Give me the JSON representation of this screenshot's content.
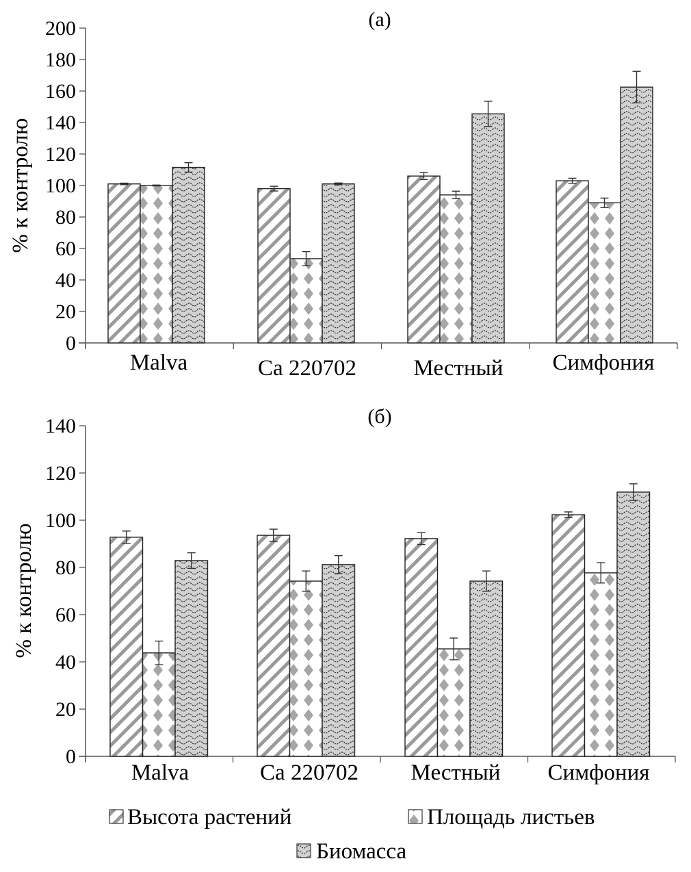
{
  "chart_data": [
    {
      "type": "bar",
      "title": "(а)",
      "xlabel": "",
      "ylabel": "% к контролю",
      "ylim": [
        0,
        200
      ],
      "yticks": [
        0,
        20,
        40,
        60,
        80,
        100,
        120,
        140,
        160,
        180,
        200
      ],
      "grid": false,
      "categories": [
        "Malva",
        "Ca 220702",
        "Местный",
        "Симфония"
      ],
      "series": [
        {
          "name": "Высота растений",
          "values": [
            101,
            98,
            106,
            103
          ],
          "errors": [
            0.5,
            1.5,
            2.2,
            1.6
          ]
        },
        {
          "name": "Площадь листьев",
          "values": [
            100,
            53.5,
            94,
            89
          ],
          "errors": [
            0.3,
            4.5,
            2.4,
            3.0
          ]
        },
        {
          "name": "Биомасса",
          "values": [
            111.5,
            101,
            145.5,
            162.5
          ],
          "errors": [
            3,
            0.6,
            8,
            10
          ]
        }
      ]
    },
    {
      "type": "bar",
      "title": "(б)",
      "xlabel": "",
      "ylabel": "% к контролю",
      "ylim": [
        0,
        140
      ],
      "yticks": [
        0,
        20,
        40,
        60,
        80,
        100,
        120,
        140
      ],
      "grid": false,
      "categories": [
        "Malva",
        "Ca 220702",
        "Местный",
        "Симфония"
      ],
      "series": [
        {
          "name": "Высота растений",
          "values": [
            92.8,
            93.6,
            92.2,
            102.3
          ],
          "errors": [
            2.6,
            2.6,
            2.5,
            1.2
          ]
        },
        {
          "name": "Площадь листьев",
          "values": [
            43.8,
            74.2,
            45.5,
            77.7
          ],
          "errors": [
            5,
            4.3,
            4.6,
            4.3
          ]
        },
        {
          "name": "Биомасса",
          "values": [
            82.9,
            81.2,
            74.2,
            111.9
          ],
          "errors": [
            3.3,
            3.8,
            4.3,
            3.5
          ]
        }
      ]
    }
  ],
  "legend": {
    "position": "bottom",
    "items": [
      {
        "label": "Высота растений",
        "pattern": "diagonal-stripes"
      },
      {
        "label": "Площадь листьев",
        "pattern": "diamonds"
      },
      {
        "label": "Биомасса",
        "pattern": "waves-on-gray"
      }
    ]
  },
  "colors": {
    "stripe": "#9a9a9a",
    "diamond": "#a6a6a6",
    "biomass_fill": "#d2d2d2",
    "axis": "#555555"
  }
}
